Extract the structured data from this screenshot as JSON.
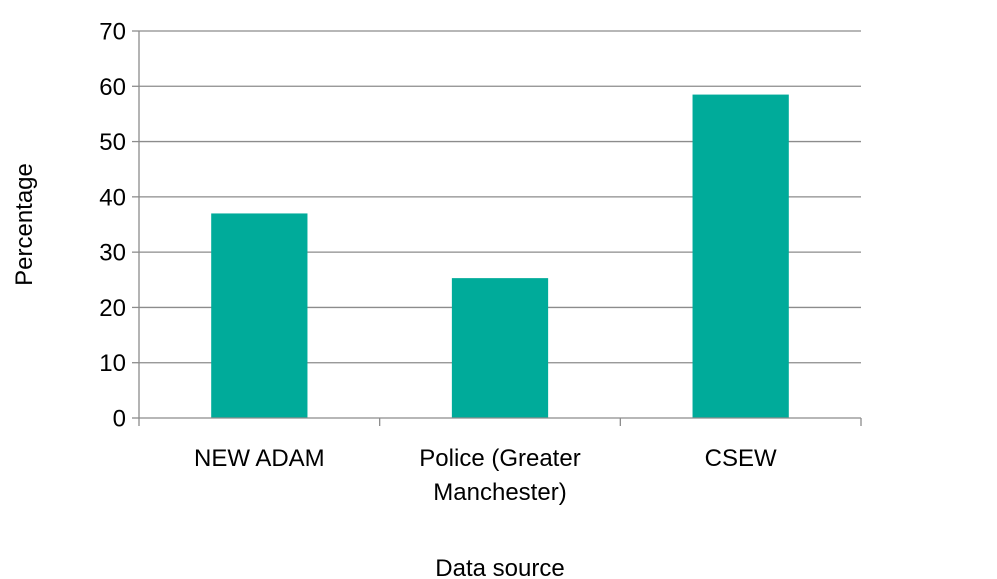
{
  "chart_data": {
    "type": "bar",
    "title": "",
    "xlabel": "Data source",
    "ylabel": "Percentage",
    "categories": [
      [
        "NEW ADAM"
      ],
      [
        "Police (Greater",
        "Manchester)"
      ],
      [
        "CSEW"
      ]
    ],
    "values": [
      37,
      25.3,
      58.5
    ],
    "ylim": [
      0,
      70
    ],
    "yticks": [
      0,
      10,
      20,
      30,
      40,
      50,
      60,
      70
    ],
    "ytick_labels": [
      "0",
      "10",
      "20",
      "30",
      "40",
      "50",
      "60",
      "70"
    ],
    "grid": true,
    "legend": "none",
    "colors": {
      "bar": "#00ab9a",
      "grid": "#8c8c8c",
      "axis": "#8c8c8c"
    }
  }
}
